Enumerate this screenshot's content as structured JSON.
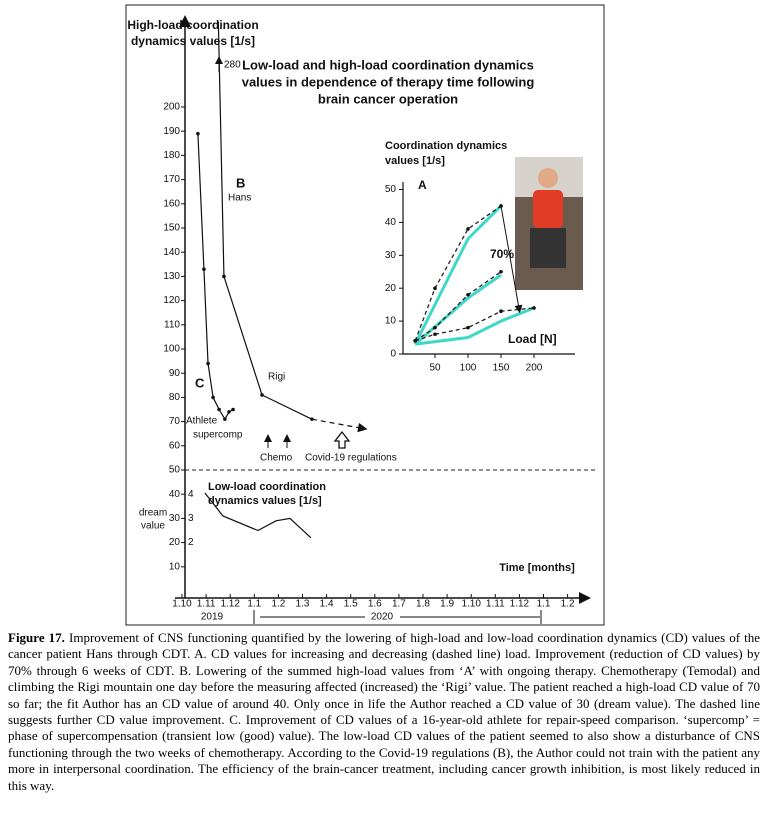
{
  "main_chart": {
    "title": [
      "Low-load and high-load coordination dynamics",
      "values in dependence of therapy time following",
      "brain cancer operation"
    ],
    "y_label": [
      "High-load coordination",
      "dynamics values [1/s]"
    ],
    "yticks": [
      10,
      20,
      30,
      40,
      50,
      60,
      70,
      80,
      90,
      100,
      110,
      120,
      130,
      140,
      150,
      160,
      170,
      180,
      190,
      200
    ],
    "xticks": [
      "1.10",
      "1.11",
      "1.12",
      "1.1",
      "1.2",
      "1.3",
      "1.4",
      "1.5",
      "1.6",
      "1.7",
      "1.8",
      "1.9",
      "1.10",
      "1.11",
      "1.12",
      "1.1",
      "1.2"
    ],
    "x_label": "Time [months]",
    "years": [
      "2019",
      "2020"
    ],
    "threshold": 50,
    "series": [
      {
        "name": "Hans",
        "label": "B",
        "x": [
          1.41,
          1.74,
          3.32,
          5.39
        ],
        "values": [
          280,
          130,
          81,
          71
        ]
      },
      {
        "name": "Athlete",
        "label": "C",
        "x": [
          0.66,
          0.91,
          1.08,
          1.29,
          1.54,
          1.78,
          1.95,
          2.12
        ],
        "values": [
          189,
          133,
          94,
          80,
          75,
          71,
          74,
          75
        ]
      }
    ],
    "forecast": {
      "x": [
        5.39,
        7.6
      ],
      "values": [
        71,
        67
      ]
    },
    "offscale_label": "280",
    "annotations": {
      "rigi": "Rigi",
      "supercomp": "supercomp",
      "chemo": "Chemo",
      "covid": "Covid-19 regulations"
    },
    "low_load": {
      "label": [
        "Low-load coordination",
        "dynamics values [1/s]"
      ],
      "yticks": [
        2,
        3,
        4
      ],
      "dream": [
        "dream",
        "value"
      ],
      "x": [
        0.95,
        1.7,
        3.15,
        3.9,
        4.48,
        5.35
      ],
      "values": [
        4.05,
        3.1,
        2.5,
        2.9,
        3.0,
        2.2
      ]
    }
  },
  "inset": {
    "y_label": [
      "Coordination dynamics",
      "values [1/s]"
    ],
    "label": "A",
    "x_label": "Load [N]",
    "reduction_label": "70%",
    "xticks": [
      50,
      100,
      150,
      200
    ],
    "yticks": [
      0,
      10,
      20,
      30,
      40,
      50
    ],
    "increasing": [
      {
        "x": [
          20,
          100,
          150
        ],
        "values": [
          3,
          35,
          45
        ]
      },
      {
        "x": [
          20,
          100,
          150
        ],
        "values": [
          3,
          17,
          24
        ]
      },
      {
        "x": [
          20,
          100,
          150,
          200
        ],
        "values": [
          3,
          5,
          10,
          14
        ]
      }
    ],
    "decreasing": [
      {
        "x": [
          20,
          50,
          100,
          150
        ],
        "values": [
          4,
          20,
          38,
          45
        ]
      },
      {
        "x": [
          20,
          50,
          100,
          150
        ],
        "values": [
          4,
          8,
          18,
          25
        ]
      },
      {
        "x": [
          20,
          50,
          100,
          150,
          200
        ],
        "values": [
          4,
          6,
          8,
          13,
          14
        ]
      }
    ]
  },
  "caption": {
    "label": "Figure 17.",
    "text": "Improvement of CNS functioning quantified by the lowering of high-load and low-load coordination dynamics (CD) values of the cancer patient Hans through CDT. A. CD values for increasing and decreasing (dashed line) load. Improvement (reduction of CD values) by 70% through 6 weeks of CDT. B. Lowering of the summed high-load values from ‘A’ with ongoing therapy. Chemotherapy (Temodal) and climbing the Rigi mountain one day before the measuring affected (increased) the ‘Rigi’ value. The patient reached a high-load CD value of 70 so far; the fit Author has an CD value of around 40. Only once in life the Author reached a CD value of 30 (dream value). The dashed line suggests further CD value improvement. C. Improvement of CD values of a 16-year-old athlete for repair-speed comparison. ‘supercomp’ = phase of supercompensation (transient low (good) value). The low-load CD values of the patient seemed to also show a disturbance of CNS functioning through the two weeks of chemotherapy. According to the Covid-19 regulations (B), the Author could not train with the patient any more in interpersonal coordination. The efficiency of the brain-cancer treatment, including cancer growth inhibition, is most likely reduced in this way."
  }
}
